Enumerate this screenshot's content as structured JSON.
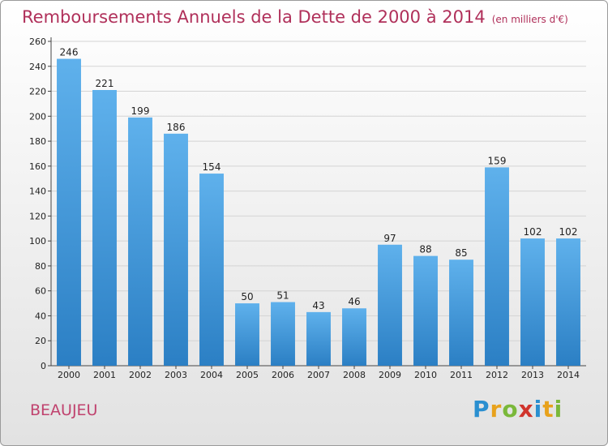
{
  "chart_data": {
    "type": "bar",
    "title": "Remboursements Annuels de la Dette de 2000 à 2014",
    "unit_note": "(en milliers d'€)",
    "categories": [
      "2000",
      "2001",
      "2002",
      "2003",
      "2004",
      "2005",
      "2006",
      "2007",
      "2008",
      "2009",
      "2010",
      "2011",
      "2012",
      "2013",
      "2014"
    ],
    "values": [
      246,
      221,
      199,
      186,
      154,
      50,
      51,
      43,
      46,
      97,
      88,
      85,
      159,
      102,
      102
    ],
    "ylim": [
      0,
      260
    ],
    "yticks": [
      0,
      20,
      40,
      60,
      80,
      100,
      120,
      140,
      160,
      180,
      200,
      220,
      240,
      260
    ],
    "xlabel": "",
    "ylabel": "",
    "grid": true,
    "bar_color": "#4a9fe0"
  },
  "footer": {
    "town": "BEAUJEU",
    "logo_letters": [
      "P",
      "r",
      "o",
      "x",
      "i",
      "t",
      "i"
    ]
  }
}
